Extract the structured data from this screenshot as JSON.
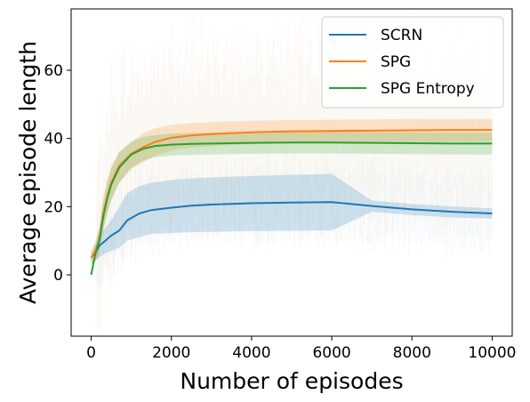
{
  "chart_data": {
    "type": "line",
    "xlabel": "Number of episodes",
    "ylabel": "Average episode length",
    "xlim": [
      -500,
      10500
    ],
    "ylim": [
      -18,
      78
    ],
    "xticks": [
      0,
      2000,
      4000,
      6000,
      8000,
      10000
    ],
    "yticks": [
      0,
      20,
      40,
      60
    ],
    "legend": {
      "position": "top-right"
    },
    "grid": false,
    "series": [
      {
        "name": "SCRN",
        "color": "#1f77b4",
        "x": [
          0,
          100,
          200,
          300,
          500,
          700,
          900,
          1200,
          1500,
          2000,
          2500,
          3000,
          4000,
          5000,
          6000,
          7000,
          8000,
          9000,
          10000
        ],
        "y": [
          5,
          6.5,
          8.5,
          9.5,
          11.5,
          13,
          16,
          18,
          19,
          19.7,
          20.3,
          20.6,
          21,
          21.2,
          21.3,
          20.2,
          19.2,
          18.5,
          18
        ],
        "band_low": [
          3,
          4,
          5,
          6,
          7,
          8,
          10,
          11,
          12,
          12.3,
          12.5,
          12.6,
          12.8,
          12.9,
          13,
          18.5,
          17.5,
          16.8,
          16.5
        ],
        "band_high": [
          7,
          9,
          12,
          13,
          16,
          20,
          24,
          26,
          27,
          27.8,
          28.3,
          28.6,
          29,
          29.3,
          29.6,
          21.8,
          20.8,
          20.1,
          19.5
        ]
      },
      {
        "name": "SPG",
        "color": "#ff7f0e",
        "x": [
          0,
          100,
          200,
          300,
          400,
          500,
          700,
          1000,
          1300,
          1600,
          2000,
          2500,
          3000,
          4000,
          5000,
          6000,
          7000,
          8000,
          9000,
          10000
        ],
        "y": [
          5,
          7,
          10,
          18,
          23,
          27,
          32,
          35.5,
          37.5,
          39,
          40.2,
          40.9,
          41.3,
          41.8,
          42.1,
          42.2,
          42.3,
          42.4,
          42.5,
          42.5
        ],
        "band_low": [
          3,
          4,
          6,
          13,
          18,
          22,
          27,
          31,
          33,
          35,
          36.5,
          37.3,
          37.8,
          38.3,
          38.6,
          38.8,
          38.9,
          39,
          39,
          39.2
        ],
        "band_high": [
          7,
          10,
          14,
          23,
          28,
          32,
          36,
          39,
          41.5,
          43,
          44,
          44.5,
          44.8,
          45.2,
          45.4,
          45.5,
          45.6,
          45.7,
          45.7,
          45.7
        ]
      },
      {
        "name": "SPG Entropy",
        "color": "#2ca02c",
        "x": [
          0,
          100,
          200,
          300,
          400,
          500,
          700,
          1000,
          1300,
          1600,
          2000,
          2500,
          3000,
          4000,
          5000,
          6000,
          7000,
          8000,
          9000,
          10000
        ],
        "y": [
          0,
          6,
          10,
          17,
          22.5,
          26.5,
          31.5,
          35.3,
          37,
          37.8,
          38.2,
          38.4,
          38.5,
          38.7,
          38.8,
          38.8,
          38.7,
          38.6,
          38.5,
          38.5
        ],
        "band_low": [
          0,
          4,
          7,
          13,
          18,
          22,
          27,
          31.5,
          33.5,
          34.5,
          35,
          35.2,
          35.3,
          35.5,
          35.6,
          35.6,
          35.5,
          35.4,
          35.3,
          35.3
        ],
        "band_high": [
          0,
          8,
          13,
          21,
          27,
          31,
          36,
          39,
          40.5,
          41,
          41.4,
          41.6,
          41.7,
          41.9,
          42,
          42,
          41.9,
          41.8,
          41.7,
          41.7
        ]
      }
    ]
  }
}
